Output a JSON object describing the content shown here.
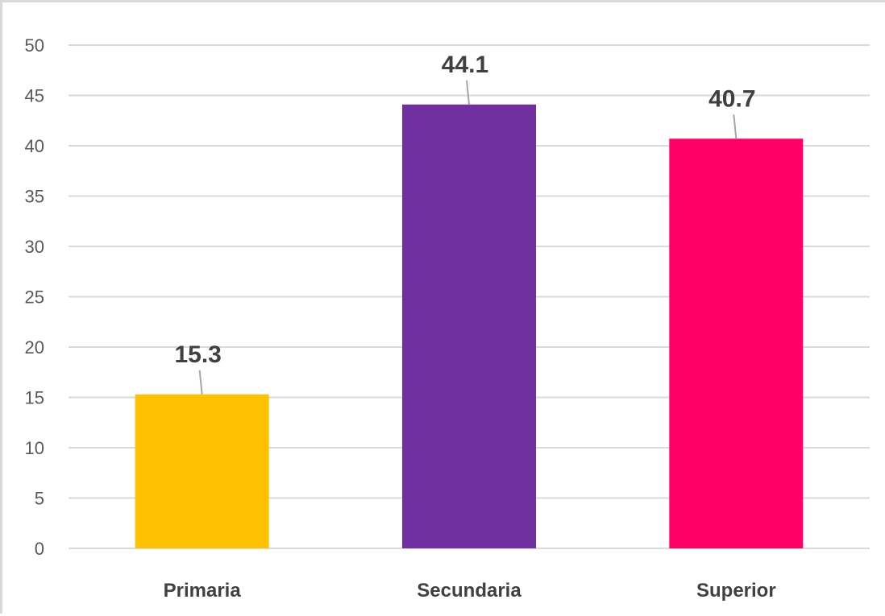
{
  "chart_data": {
    "type": "bar",
    "title": "",
    "xlabel": "",
    "ylabel": "",
    "categories": [
      "Primaria",
      "Secundaria",
      "Superior"
    ],
    "values": [
      15.3,
      44.1,
      40.7
    ],
    "data_labels": [
      "15.3",
      "44.1",
      "40.7"
    ],
    "colors": [
      "#ffc000",
      "#7030a0",
      "#ff0066"
    ],
    "ylim": [
      0,
      50
    ],
    "yticks": [
      0,
      5,
      10,
      15,
      20,
      25,
      30,
      35,
      40,
      45,
      50
    ],
    "grid": true,
    "legend": "none",
    "gridline_color": "#d9d9d9",
    "label_color": "#404040"
  }
}
